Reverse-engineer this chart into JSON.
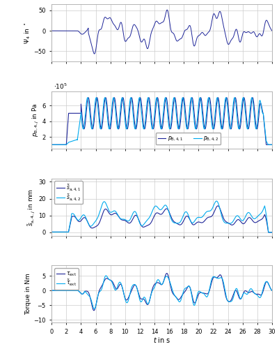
{
  "xlim": [
    0,
    30
  ],
  "plot1_ylim": [
    -75,
    65
  ],
  "plot1_yticks": [
    -50,
    0,
    50
  ],
  "plot1_ylabel": "$\\Psi_4$ in $^\\circ$",
  "plot2_ylim": [
    50000.0,
    780000.0
  ],
  "plot2_yticks": [
    200000.0,
    400000.0,
    600000.0
  ],
  "plot2_ylabel": "$p_{\\mathrm{B},4,j}$ in Pa",
  "plot3_ylim": [
    -2,
    32
  ],
  "plot3_yticks": [
    0,
    10,
    20,
    30
  ],
  "plot3_ylabel": "$\\tilde{s}_{\\mathrm{a},4,j}$ in mm",
  "plot4_ylim": [
    -11,
    8.5
  ],
  "plot4_yticks": [
    -10,
    -5,
    0,
    5
  ],
  "plot4_ylabel": "Torque in Nm",
  "xlabel": "$t$ in s",
  "xticks": [
    0,
    2,
    4,
    6,
    8,
    10,
    12,
    14,
    16,
    18,
    20,
    22,
    24,
    26,
    28,
    30
  ],
  "color_dark_blue": "#1f2699",
  "color_cyan": "#00aaee",
  "grid_color": "#cccccc",
  "legend2_labels": [
    "$p_{\\mathrm{B},4,1}$",
    "$p_{\\mathrm{B},4,2}$"
  ],
  "legend3_labels": [
    "$\\tilde{s}_{\\mathrm{a},4,1}$",
    "$\\tilde{s}_{\\mathrm{a},4,2}$"
  ],
  "legend4_labels": [
    "$\\tau_{\\mathrm{ext}}$",
    "$\\tilde{\\tau}_{\\mathrm{ext}}$"
  ]
}
